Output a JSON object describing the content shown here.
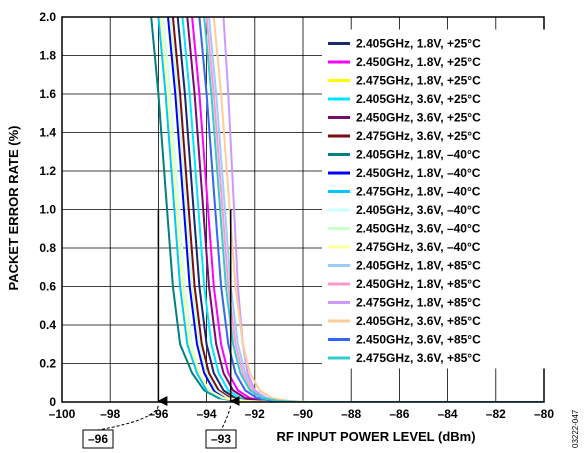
{
  "chart_data": {
    "type": "line",
    "xlabel": "RF INPUT POWER LEVEL (dBm)",
    "ylabel": "PACKET ERROR RATE (%)",
    "xlim": [
      -100,
      -80
    ],
    "ylim": [
      0,
      2.0
    ],
    "x_ticks": [
      -100,
      -98,
      -96,
      -94,
      -92,
      -90,
      -88,
      -86,
      -84,
      -82,
      -80
    ],
    "x_tick_labels": [
      "–100",
      "–98",
      "–96",
      "–94",
      "–92",
      "–90",
      "–88",
      "–86",
      "–84",
      "–82",
      "–80"
    ],
    "y_ticks": [
      0,
      0.2,
      0.4,
      0.6,
      0.8,
      1.0,
      1.2,
      1.4,
      1.6,
      1.8,
      2.0
    ],
    "y_tick_labels": [
      "0",
      "0.2",
      "0.4",
      "0.6",
      "0.8",
      "1.0",
      "1.2",
      "1.4",
      "1.6",
      "1.8",
      "2.0"
    ],
    "grid": true,
    "legend_position": "right",
    "series": [
      {
        "name": "2.405GHz, 1.8V, +25°C",
        "color": "#1a2a6e",
        "x": [
          -95.2,
          -94.9,
          -94.6,
          -94.3,
          -94.0,
          -93.7,
          -93.3,
          -92.8,
          -92.0,
          -91.0,
          -89.0,
          -80.0
        ],
        "y": [
          2.0,
          1.6,
          1.1,
          0.6,
          0.3,
          0.15,
          0.06,
          0.02,
          0.005,
          0.0,
          0.0,
          0.0
        ]
      },
      {
        "name": "2.450GHz, 1.8V, +25°C",
        "color": "#ff00ff",
        "x": [
          -94.6,
          -94.3,
          -94.0,
          -93.7,
          -93.4,
          -93.1,
          -92.7,
          -92.2,
          -91.5,
          -90.5,
          -89.0,
          -80.0
        ],
        "y": [
          2.0,
          1.6,
          1.1,
          0.6,
          0.3,
          0.15,
          0.06,
          0.02,
          0.005,
          0.0,
          0.0,
          0.0
        ]
      },
      {
        "name": "2.475GHz, 1.8V, +25°C",
        "color": "#ffff00",
        "x": [
          -94.3,
          -94.0,
          -93.7,
          -93.4,
          -93.1,
          -92.8,
          -92.4,
          -91.9,
          -91.2,
          -90.3,
          -89.0,
          -80.0
        ],
        "y": [
          2.0,
          1.6,
          1.1,
          0.6,
          0.3,
          0.15,
          0.06,
          0.02,
          0.005,
          0.0,
          0.0,
          0.0
        ]
      },
      {
        "name": "2.405GHz, 3.6V, +25°C",
        "color": "#00e5ff",
        "x": [
          -95.0,
          -94.7,
          -94.4,
          -94.1,
          -93.8,
          -93.5,
          -93.1,
          -92.6,
          -91.8,
          -90.8,
          -89.0,
          -80.0
        ],
        "y": [
          2.0,
          1.6,
          1.1,
          0.6,
          0.3,
          0.15,
          0.06,
          0.02,
          0.005,
          0.0,
          0.0,
          0.0
        ]
      },
      {
        "name": "2.450GHz, 3.6V, +25°C",
        "color": "#7a0a6e",
        "x": [
          -94.8,
          -94.5,
          -94.2,
          -93.9,
          -93.6,
          -93.3,
          -92.9,
          -92.4,
          -91.7,
          -90.7,
          -89.0,
          -80.0
        ],
        "y": [
          2.0,
          1.6,
          1.1,
          0.6,
          0.3,
          0.15,
          0.06,
          0.02,
          0.005,
          0.0,
          0.0,
          0.0
        ]
      },
      {
        "name": "2.475GHz, 3.6V, +25°C",
        "color": "#7a0a14",
        "x": [
          -95.4,
          -95.1,
          -94.8,
          -94.5,
          -94.2,
          -93.9,
          -93.5,
          -93.0,
          -92.2,
          -91.2,
          -89.0,
          -80.0
        ],
        "y": [
          2.0,
          1.6,
          1.1,
          0.6,
          0.3,
          0.15,
          0.06,
          0.02,
          0.005,
          0.0,
          0.0,
          0.0
        ]
      },
      {
        "name": "2.405GHz, 1.8V, –40°C",
        "color": "#00807f",
        "x": [
          -96.3,
          -96.0,
          -95.7,
          -95.4,
          -95.1,
          -94.6,
          -94.1,
          -93.5,
          -92.7,
          -91.5,
          -89.5,
          -80.0
        ],
        "y": [
          2.0,
          1.6,
          1.1,
          0.6,
          0.3,
          0.15,
          0.06,
          0.02,
          0.005,
          0.0,
          0.0,
          0.0
        ]
      },
      {
        "name": "2.450GHz, 1.8V, –40°C",
        "color": "#0000ff",
        "x": [
          -95.6,
          -95.3,
          -95.0,
          -94.7,
          -94.4,
          -94.1,
          -93.7,
          -93.2,
          -92.4,
          -91.3,
          -89.3,
          -80.0
        ],
        "y": [
          2.0,
          1.6,
          1.1,
          0.6,
          0.3,
          0.15,
          0.06,
          0.02,
          0.005,
          0.0,
          0.0,
          0.0
        ]
      },
      {
        "name": "2.475GHz, 1.8V, –40°C",
        "color": "#00c8ff",
        "x": [
          -96.0,
          -95.7,
          -95.4,
          -95.1,
          -94.8,
          -94.4,
          -94.0,
          -93.4,
          -92.6,
          -91.4,
          -89.4,
          -80.0
        ],
        "y": [
          2.0,
          1.6,
          1.1,
          0.6,
          0.3,
          0.15,
          0.06,
          0.02,
          0.005,
          0.0,
          0.0,
          0.0
        ]
      },
      {
        "name": "2.405GHz, 3.6V, –40°C",
        "color": "#ccffff",
        "x": [
          -95.8,
          -95.5,
          -95.2,
          -94.9,
          -94.6,
          -94.3,
          -93.9,
          -93.3,
          -92.5,
          -91.4,
          -89.4,
          -80.0
        ],
        "y": [
          2.0,
          1.6,
          1.1,
          0.6,
          0.3,
          0.15,
          0.06,
          0.02,
          0.005,
          0.0,
          0.0,
          0.0
        ]
      },
      {
        "name": "2.450GHz, 3.6V, –40°C",
        "color": "#ccffcc",
        "x": [
          -95.5,
          -95.2,
          -94.9,
          -94.6,
          -94.3,
          -94.0,
          -93.6,
          -93.1,
          -92.3,
          -91.3,
          -89.3,
          -80.0
        ],
        "y": [
          2.0,
          1.6,
          1.1,
          0.6,
          0.3,
          0.15,
          0.06,
          0.02,
          0.005,
          0.0,
          0.0,
          0.0
        ]
      },
      {
        "name": "2.475GHz, 3.6V, –40°C",
        "color": "#ffff99",
        "x": [
          -95.9,
          -95.6,
          -95.3,
          -95.0,
          -94.7,
          -94.3,
          -93.9,
          -93.3,
          -92.5,
          -91.4,
          -89.4,
          -80.0
        ],
        "y": [
          2.0,
          1.6,
          1.1,
          0.6,
          0.3,
          0.15,
          0.06,
          0.02,
          0.005,
          0.0,
          0.0,
          0.0
        ]
      },
      {
        "name": "2.405GHz, 1.8V, +85°C",
        "color": "#99ccff",
        "x": [
          -93.9,
          -93.6,
          -93.3,
          -93.0,
          -92.7,
          -92.4,
          -92.0,
          -91.5,
          -90.8,
          -89.9,
          -88.5,
          -80.0
        ],
        "y": [
          2.0,
          1.6,
          1.1,
          0.6,
          0.3,
          0.15,
          0.06,
          0.02,
          0.005,
          0.0,
          0.0,
          0.0
        ]
      },
      {
        "name": "2.450GHz, 1.8V, +85°C",
        "color": "#ff99cc",
        "x": [
          -94.0,
          -93.7,
          -93.4,
          -93.1,
          -92.8,
          -92.5,
          -92.1,
          -91.6,
          -90.9,
          -90.0,
          -88.6,
          -80.0
        ],
        "y": [
          2.0,
          1.6,
          1.1,
          0.6,
          0.3,
          0.15,
          0.06,
          0.02,
          0.005,
          0.0,
          0.0,
          0.0
        ]
      },
      {
        "name": "2.475GHz, 1.8V, +85°C",
        "color": "#cc99ff",
        "x": [
          -93.3,
          -93.1,
          -92.9,
          -92.7,
          -92.5,
          -92.3,
          -92.0,
          -91.6,
          -91.0,
          -90.2,
          -88.8,
          -80.0
        ],
        "y": [
          2.0,
          1.6,
          1.1,
          0.6,
          0.3,
          0.15,
          0.06,
          0.02,
          0.005,
          0.0,
          0.0,
          0.0
        ]
      },
      {
        "name": "2.405GHz, 3.6V, +85°C",
        "color": "#ffcc99",
        "x": [
          -93.7,
          -93.4,
          -93.1,
          -92.8,
          -92.5,
          -92.2,
          -91.8,
          -91.3,
          -90.6,
          -89.7,
          -88.3,
          -80.0
        ],
        "y": [
          2.0,
          1.6,
          1.1,
          0.6,
          0.3,
          0.15,
          0.06,
          0.02,
          0.005,
          0.0,
          0.0,
          0.0
        ]
      },
      {
        "name": "2.450GHz, 3.6V, +85°C",
        "color": "#3366ff",
        "x": [
          -94.3,
          -94.0,
          -93.7,
          -93.4,
          -93.1,
          -92.8,
          -92.4,
          -91.9,
          -91.2,
          -90.3,
          -88.9,
          -80.0
        ],
        "y": [
          2.0,
          1.6,
          1.1,
          0.6,
          0.3,
          0.15,
          0.06,
          0.02,
          0.005,
          0.0,
          0.0,
          0.0
        ]
      },
      {
        "name": "2.475GHz, 3.6V, +85°C",
        "color": "#33cccc",
        "x": [
          -94.1,
          -93.8,
          -93.5,
          -93.2,
          -92.9,
          -92.6,
          -92.2,
          -91.7,
          -91.0,
          -90.1,
          -88.7,
          -80.0
        ],
        "y": [
          2.0,
          1.6,
          1.1,
          0.6,
          0.3,
          0.15,
          0.06,
          0.02,
          0.005,
          0.0,
          0.0,
          0.0
        ]
      }
    ],
    "annotations": [
      {
        "label": "–96",
        "x": -96
      },
      {
        "label": "–93",
        "x": -93
      }
    ],
    "figure_code": "03222-047"
  }
}
